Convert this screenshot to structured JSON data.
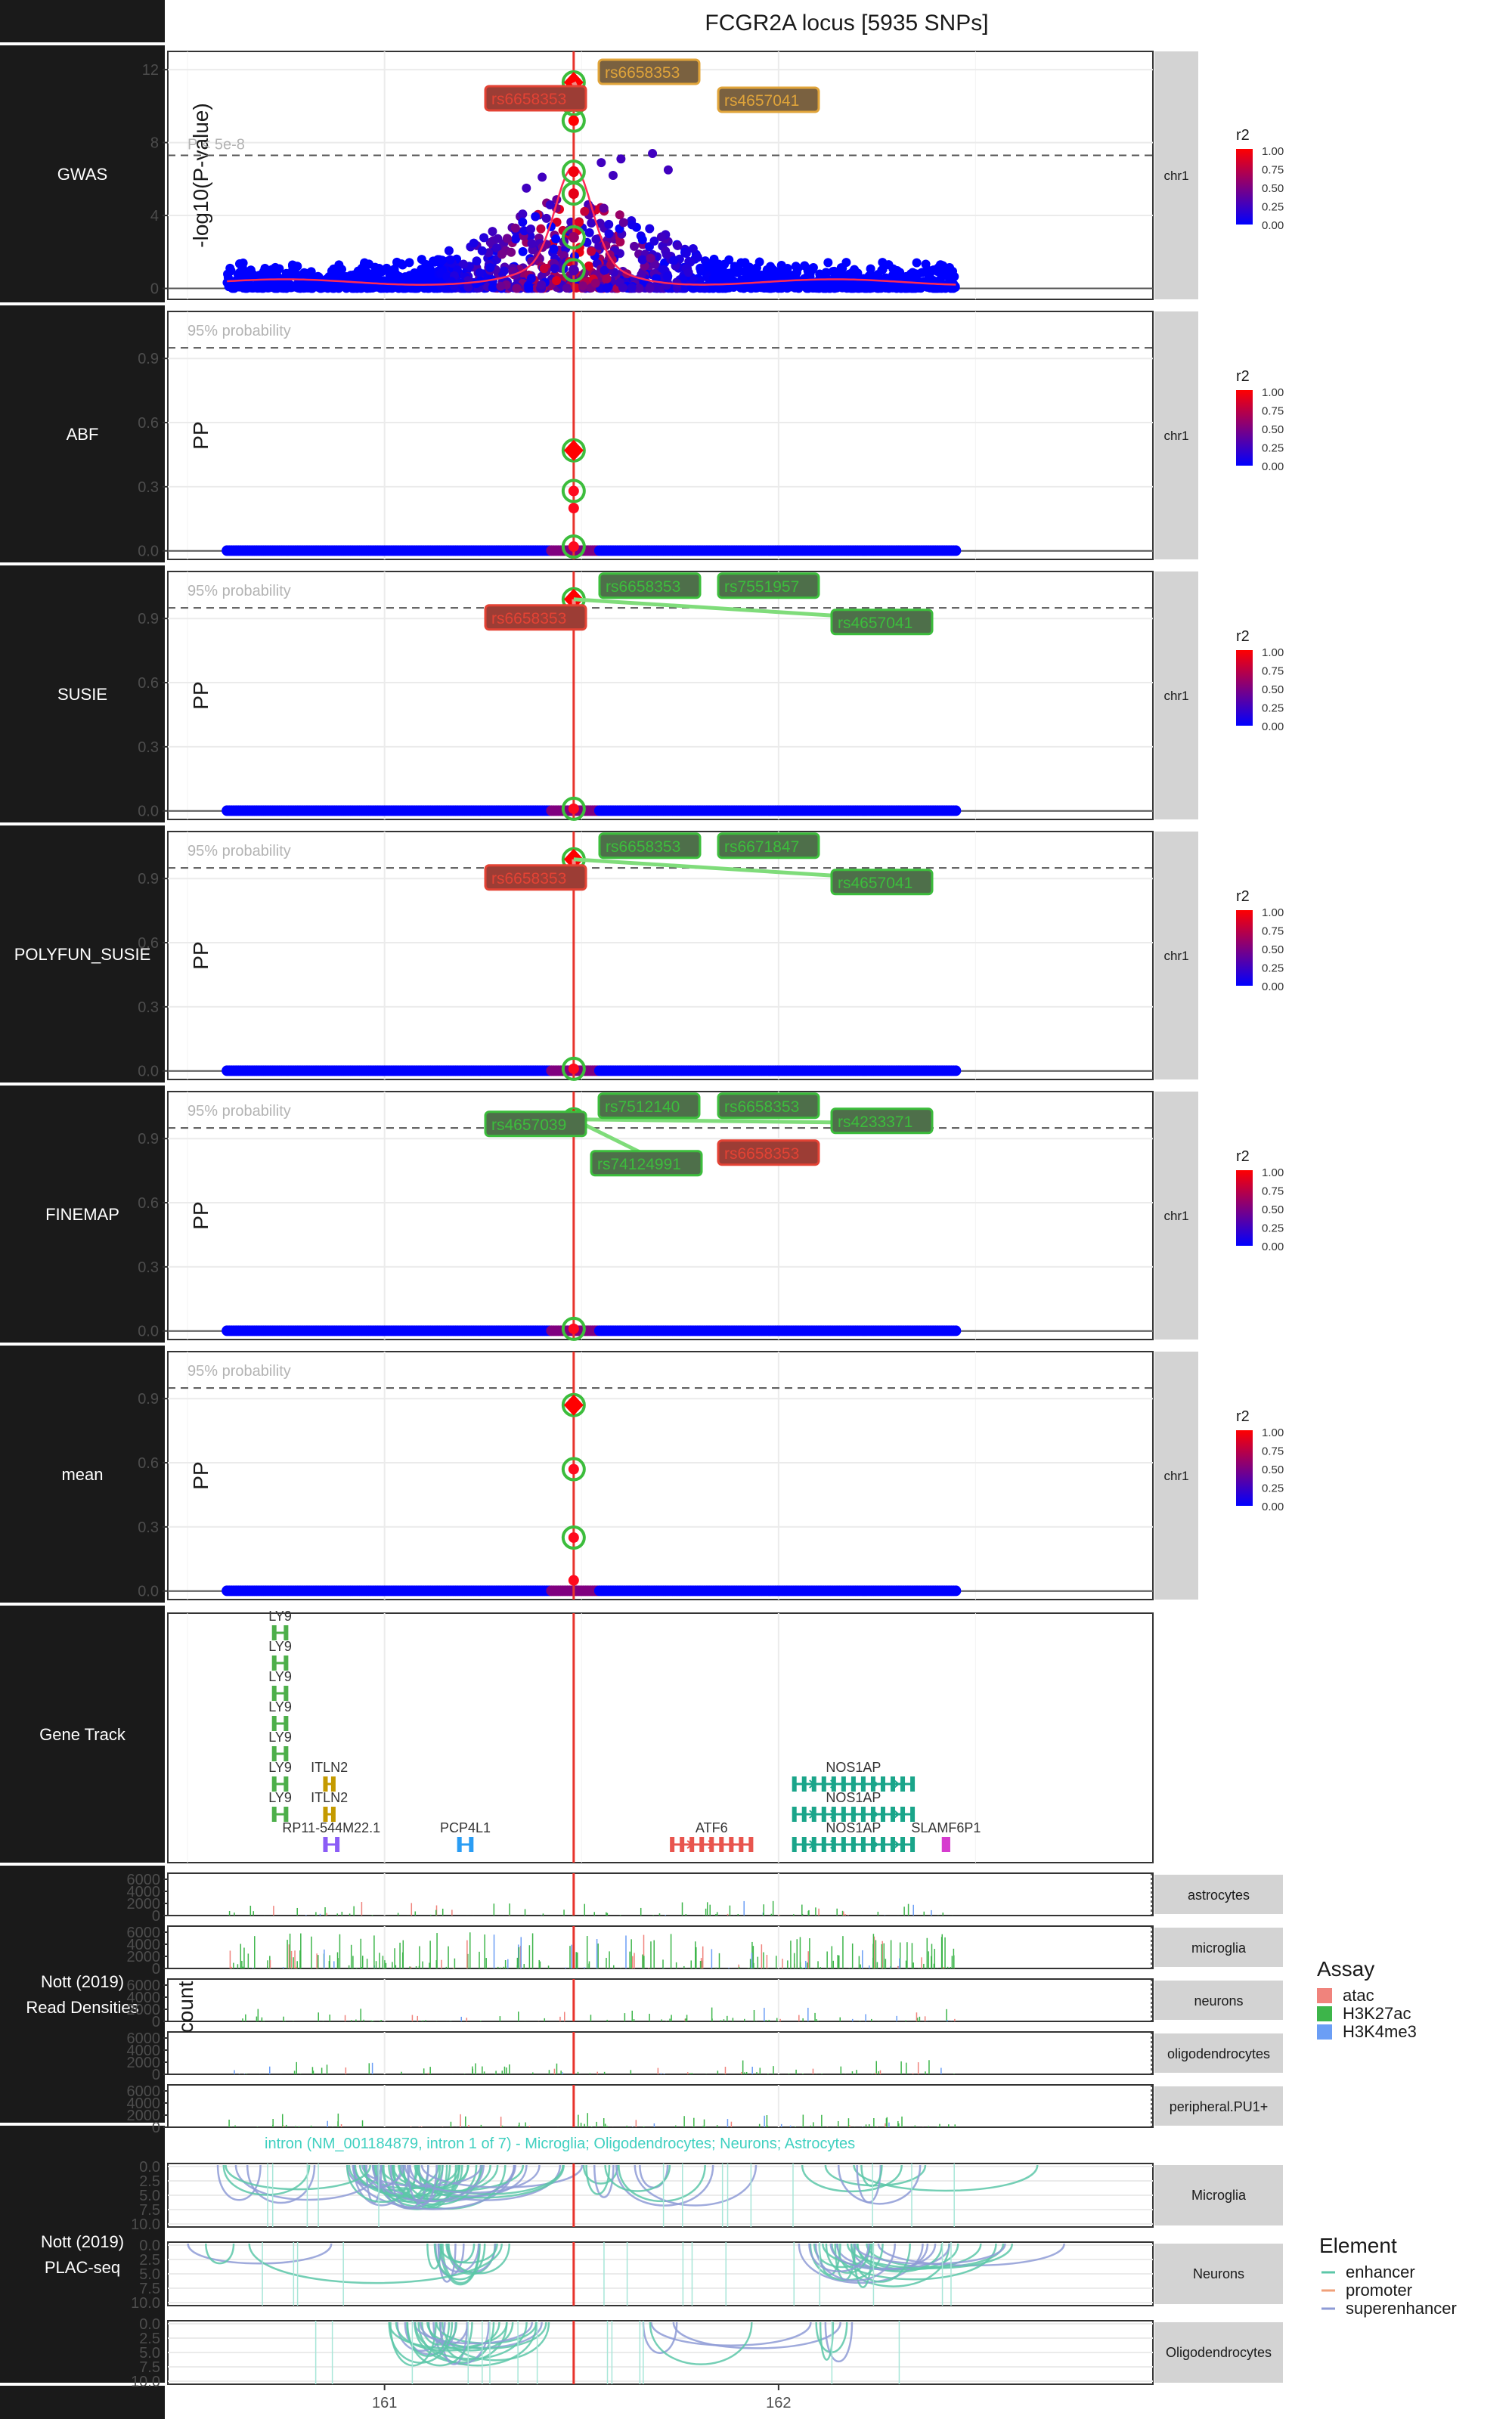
{
  "title": "FCGR2A locus [5935 SNPs]",
  "x_axis": {
    "ticks": [
      {
        "value": 161,
        "label": "161"
      },
      {
        "value": 162,
        "label": "162"
      }
    ],
    "range": [
      160.45,
      162.95
    ]
  },
  "lead_snp_position": 161.48,
  "colors": {
    "strip": "#1a1a1a",
    "strip_text": "#ffffff",
    "facet": "#d3d3d3",
    "lead_line": "#e8332c",
    "snp_low": "#0000ff",
    "snp_high": "#ff0000",
    "lead_point": "#ff0000",
    "credset_ring": "#3cbd3c",
    "label_orange": "#e0a43a",
    "label_red": "#e34234",
    "label_green": "#3cbd3c"
  },
  "rows": [
    {
      "label": "GWAS",
      "kind": "gwas",
      "facet": "chr1"
    },
    {
      "label": "ABF",
      "kind": "pp",
      "facet": "chr1"
    },
    {
      "label": "SUSIE",
      "kind": "pp",
      "facet": "chr1"
    },
    {
      "label": "POLYFUN_SUSIE",
      "kind": "pp",
      "facet": "chr1"
    },
    {
      "label": "FINEMAP",
      "kind": "pp",
      "facet": "chr1"
    },
    {
      "label": "mean",
      "kind": "pp",
      "facet": "chr1"
    },
    {
      "label": "Gene Track",
      "kind": "genes"
    },
    {
      "label": "Nott (2019)\nRead Densities",
      "kind": "reads"
    },
    {
      "label": "Nott (2019)\nPLAC-seq",
      "kind": "plac"
    }
  ],
  "gwas": {
    "ylabel": "-log10(P-value)",
    "yticks": [
      0,
      4,
      8,
      12
    ],
    "ylim": [
      -0.6,
      13
    ],
    "threshold": {
      "value": 7.3,
      "label": "P < 5e-8"
    },
    "peak_points": [
      {
        "x": 161.48,
        "y": 11.3,
        "r2": 1.0,
        "lead": true
      },
      {
        "x": 161.48,
        "y": 10.1,
        "r2": 1.0,
        "ring": true
      },
      {
        "x": 161.48,
        "y": 9.2,
        "r2": 1.0,
        "ring": true
      },
      {
        "x": 161.48,
        "y": 6.4,
        "r2": 0.95,
        "ring": true
      },
      {
        "x": 161.48,
        "y": 5.2,
        "r2": 0.9,
        "ring": true
      },
      {
        "x": 161.48,
        "y": 2.8,
        "r2": 0.6,
        "ring": true
      },
      {
        "x": 161.48,
        "y": 1.0,
        "r2": 0.3,
        "ring": true
      }
    ],
    "labels": [
      {
        "text": "rs6658353",
        "color": "orange"
      },
      {
        "text": "rs6658353",
        "color": "red"
      },
      {
        "text": "rs4657041",
        "color": "orange"
      }
    ]
  },
  "pp_common": {
    "ylabel": "PP",
    "yticks": [
      0.0,
      0.3,
      0.6,
      0.9
    ],
    "ytick_labels": [
      "0.0",
      "0.3",
      "0.6",
      "0.9"
    ],
    "ylim": [
      -0.04,
      1.12
    ],
    "threshold": {
      "value": 0.95,
      "label": "95% probability"
    }
  },
  "pp_panels": {
    "ABF": {
      "points": [
        {
          "y": 0.47,
          "lead": true
        },
        {
          "y": 0.28,
          "ring": true
        },
        {
          "y": 0.2
        },
        {
          "y": 0.02,
          "ring": true
        }
      ],
      "labels": []
    },
    "SUSIE": {
      "points": [
        {
          "y": 0.99,
          "lead": true
        },
        {
          "y": 0.01,
          "ring": true
        }
      ],
      "labels": [
        {
          "text": "rs6658353",
          "color": "green"
        },
        {
          "text": "rs7551957",
          "color": "green"
        },
        {
          "text": "rs6658353",
          "color": "red"
        },
        {
          "text": "rs4657041",
          "color": "green"
        }
      ]
    },
    "POLYFUN_SUSIE": {
      "points": [
        {
          "y": 0.99,
          "lead": true
        },
        {
          "y": 0.01,
          "ring": true
        }
      ],
      "labels": [
        {
          "text": "rs6658353",
          "color": "green"
        },
        {
          "text": "rs6671847",
          "color": "green"
        },
        {
          "text": "rs6658353",
          "color": "red"
        },
        {
          "text": "rs4657041",
          "color": "green"
        }
      ]
    },
    "FINEMAP": {
      "points": [
        {
          "y": 0.99,
          "lead": true
        },
        {
          "y": 0.01,
          "ring": true
        }
      ],
      "labels": [
        {
          "text": "rs7512140",
          "color": "green"
        },
        {
          "text": "rs6658353",
          "color": "green"
        },
        {
          "text": "rs4657039",
          "color": "green"
        },
        {
          "text": "rs4233371",
          "color": "green"
        },
        {
          "text": "rs74124991",
          "color": "green"
        },
        {
          "text": "rs6658353",
          "color": "red"
        }
      ]
    },
    "mean": {
      "points": [
        {
          "y": 0.87,
          "lead": true
        },
        {
          "y": 0.57,
          "ring": true
        },
        {
          "y": 0.25,
          "ring": true
        },
        {
          "y": 0.05
        }
      ],
      "labels": []
    }
  },
  "legend_r2": {
    "title": "r2",
    "ticks": [
      "1.00",
      "0.75",
      "0.50",
      "0.25",
      "0.00"
    ]
  },
  "genes": [
    {
      "name": "LY9",
      "x0": 160.72,
      "x1": 160.75,
      "lane": 0,
      "color": "#4daf4a"
    },
    {
      "name": "LY9",
      "x0": 160.72,
      "x1": 160.75,
      "lane": 1,
      "color": "#4daf4a"
    },
    {
      "name": "LY9",
      "x0": 160.72,
      "x1": 160.75,
      "lane": 2,
      "color": "#4daf4a"
    },
    {
      "name": "LY9",
      "x0": 160.72,
      "x1": 160.75,
      "lane": 3,
      "color": "#4daf4a"
    },
    {
      "name": "LY9",
      "x0": 160.72,
      "x1": 160.75,
      "lane": 4,
      "color": "#4daf4a"
    },
    {
      "name": "LY9",
      "x0": 160.72,
      "x1": 160.75,
      "lane": 5,
      "color": "#4daf4a"
    },
    {
      "name": "LY9",
      "x0": 160.72,
      "x1": 160.75,
      "lane": 6,
      "color": "#4daf4a"
    },
    {
      "name": "ITLN2",
      "x0": 160.85,
      "x1": 160.87,
      "lane": 5,
      "color": "#c49a00"
    },
    {
      "name": "ITLN2",
      "x0": 160.85,
      "x1": 160.87,
      "lane": 6,
      "color": "#c49a00"
    },
    {
      "name": "RP11-544M22.1",
      "x0": 160.85,
      "x1": 160.88,
      "lane": 7,
      "color": "#8b5cf6"
    },
    {
      "name": "PCP4L1",
      "x0": 161.19,
      "x1": 161.22,
      "lane": 7,
      "color": "#2a9df4"
    },
    {
      "name": "ATF6",
      "x0": 161.73,
      "x1": 161.93,
      "lane": 7,
      "color": "#e8554e"
    },
    {
      "name": "NOS1AP",
      "x0": 162.04,
      "x1": 162.34,
      "lane": 5,
      "color": "#1aa58a"
    },
    {
      "name": "NOS1AP",
      "x0": 162.04,
      "x1": 162.34,
      "lane": 6,
      "color": "#1aa58a"
    },
    {
      "name": "NOS1AP",
      "x0": 162.04,
      "x1": 162.34,
      "lane": 7,
      "color": "#1aa58a"
    },
    {
      "name": "SLAMF6P1",
      "x0": 162.42,
      "x1": 162.43,
      "lane": 7,
      "color": "#d63ccf"
    }
  ],
  "reads": {
    "ylabel": "count",
    "cells": [
      "astrocytes",
      "microglia",
      "neurons",
      "oligodendrocytes",
      "peripheral.PU1+"
    ],
    "yticks": [
      0,
      2000,
      4000,
      6000
    ],
    "ytick_labels": [
      "0",
      "2000",
      "4000",
      "6000"
    ],
    "ymax": 7000
  },
  "legend_assay": {
    "title": "Assay",
    "items": [
      {
        "label": "atac",
        "color": "#f0837c"
      },
      {
        "label": "H3K27ac",
        "color": "#3db54a"
      },
      {
        "label": "H3K4me3",
        "color": "#6b9ef5"
      }
    ]
  },
  "plac": {
    "annotation": "intron (NM_001184879, intron 1 of 7) - Microglia; Oligodendrocytes; Neurons; Astrocytes",
    "cells": [
      "Microglia",
      "Neurons",
      "Oligodendrocytes"
    ],
    "yticks": [
      0.0,
      2.5,
      5.0,
      7.5,
      10.0
    ],
    "ytick_labels": [
      "0.0",
      "2.5",
      "5.0",
      "7.5",
      "10.0"
    ]
  },
  "legend_element": {
    "title": "Element",
    "items": [
      {
        "label": "enhancer",
        "color": "#5cc7a8"
      },
      {
        "label": "promoter",
        "color": "#f0a07a"
      },
      {
        "label": "superenhancer",
        "color": "#8e9bd6"
      }
    ]
  }
}
